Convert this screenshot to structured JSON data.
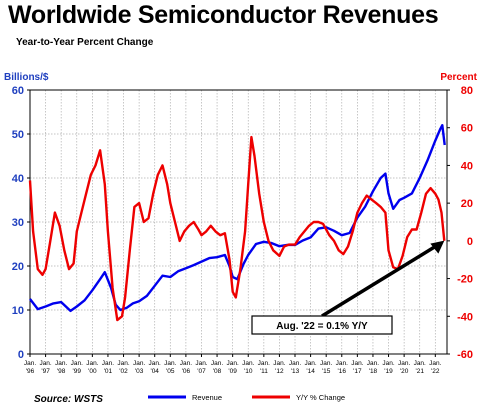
{
  "title": "Worldwide Semiconductor Revenues",
  "subtitle": "Year-to-Year Percent Change",
  "source": "Source: WSTS",
  "colors": {
    "revenue": "#0000ee",
    "change": "#ee0000",
    "axis_left": "#1f3fbf",
    "axis_right": "#ee0000",
    "grid": "#b0b0b0"
  },
  "chart_data": {
    "type": "line",
    "left_axis": {
      "label": "Billions/$",
      "ylim": [
        0,
        60
      ],
      "ticks": [
        0,
        10,
        20,
        30,
        40,
        50,
        60
      ]
    },
    "right_axis": {
      "label": "Percent",
      "ylim": [
        -60,
        80
      ],
      "ticks": [
        -60,
        -40,
        -20,
        0,
        20,
        40,
        60,
        80
      ]
    },
    "x_ticks": [
      {
        "year": "'96",
        "x": 1996
      },
      {
        "year": "'97",
        "x": 1997
      },
      {
        "year": "'98",
        "x": 1998
      },
      {
        "year": "'99",
        "x": 1999
      },
      {
        "year": "'00",
        "x": 2000
      },
      {
        "year": "'01",
        "x": 2001
      },
      {
        "year": "'02",
        "x": 2002
      },
      {
        "year": "'03",
        "x": 2003
      },
      {
        "year": "'04",
        "x": 2004
      },
      {
        "year": "'05",
        "x": 2005
      },
      {
        "year": "'06",
        "x": 2006
      },
      {
        "year": "'07",
        "x": 2007
      },
      {
        "year": "'08",
        "x": 2008
      },
      {
        "year": "'09",
        "x": 2009
      },
      {
        "year": "'10",
        "x": 2010
      },
      {
        "year": "'11",
        "x": 2011
      },
      {
        "year": "'12",
        "x": 2012
      },
      {
        "year": "'13",
        "x": 2013
      },
      {
        "year": "'14",
        "x": 2014
      },
      {
        "year": "'15",
        "x": 2015
      },
      {
        "year": "'16",
        "x": 2016
      },
      {
        "year": "'17",
        "x": 2017
      },
      {
        "year": "'18",
        "x": 2018
      },
      {
        "year": "'19",
        "x": 2019
      },
      {
        "year": "'20",
        "x": 2020
      },
      {
        "year": "'21",
        "x": 2021
      },
      {
        "year": "'22",
        "x": 2022
      }
    ],
    "x_tick_prefix": "Jan.",
    "xlim": [
      1996,
      2022.75
    ],
    "grid": true,
    "legend_position": "bottom-center",
    "series": [
      {
        "name": "Revenue",
        "axis": "left",
        "points": [
          [
            1996.0,
            12.5
          ],
          [
            1996.5,
            10.2
          ],
          [
            1997.0,
            10.8
          ],
          [
            1997.5,
            11.5
          ],
          [
            1998.0,
            11.8
          ],
          [
            1998.6,
            9.8
          ],
          [
            1999.0,
            10.8
          ],
          [
            1999.5,
            12.2
          ],
          [
            2000.0,
            14.5
          ],
          [
            2000.5,
            17.0
          ],
          [
            2000.8,
            18.6
          ],
          [
            2001.2,
            15.0
          ],
          [
            2001.5,
            11.2
          ],
          [
            2001.8,
            10.0
          ],
          [
            2002.2,
            10.5
          ],
          [
            2002.6,
            11.5
          ],
          [
            2003.0,
            12.0
          ],
          [
            2003.5,
            13.2
          ],
          [
            2004.0,
            15.5
          ],
          [
            2004.5,
            17.8
          ],
          [
            2005.0,
            17.5
          ],
          [
            2005.5,
            18.8
          ],
          [
            2006.0,
            19.5
          ],
          [
            2006.5,
            20.2
          ],
          [
            2007.0,
            21.0
          ],
          [
            2007.5,
            21.8
          ],
          [
            2008.0,
            22.0
          ],
          [
            2008.5,
            22.5
          ],
          [
            2008.8,
            20.0
          ],
          [
            2009.0,
            17.5
          ],
          [
            2009.3,
            17.0
          ],
          [
            2009.7,
            20.5
          ],
          [
            2010.0,
            22.5
          ],
          [
            2010.5,
            25.0
          ],
          [
            2011.0,
            25.5
          ],
          [
            2011.5,
            25.2
          ],
          [
            2012.0,
            24.5
          ],
          [
            2012.5,
            24.8
          ],
          [
            2013.0,
            24.8
          ],
          [
            2013.5,
            25.8
          ],
          [
            2014.0,
            26.5
          ],
          [
            2014.5,
            28.5
          ],
          [
            2015.0,
            28.8
          ],
          [
            2015.5,
            28.0
          ],
          [
            2016.0,
            27.0
          ],
          [
            2016.5,
            27.5
          ],
          [
            2017.0,
            31.0
          ],
          [
            2017.5,
            33.5
          ],
          [
            2018.0,
            37.0
          ],
          [
            2018.5,
            40.0
          ],
          [
            2018.8,
            41.0
          ],
          [
            2019.0,
            36.5
          ],
          [
            2019.3,
            33.0
          ],
          [
            2019.7,
            35.0
          ],
          [
            2020.0,
            35.5
          ],
          [
            2020.5,
            36.5
          ],
          [
            2021.0,
            40.0
          ],
          [
            2021.5,
            44.0
          ],
          [
            2022.0,
            48.5
          ],
          [
            2022.3,
            51.0
          ],
          [
            2022.45,
            52.0
          ],
          [
            2022.6,
            47.5
          ]
        ]
      },
      {
        "name": "Y/Y % Change",
        "axis": "right",
        "points": [
          [
            1996.0,
            32
          ],
          [
            1996.2,
            5
          ],
          [
            1996.5,
            -15
          ],
          [
            1996.8,
            -18
          ],
          [
            1997.0,
            -15
          ],
          [
            1997.3,
            0
          ],
          [
            1997.6,
            15
          ],
          [
            1997.9,
            8
          ],
          [
            1998.2,
            -5
          ],
          [
            1998.5,
            -15
          ],
          [
            1998.8,
            -12
          ],
          [
            1999.0,
            5
          ],
          [
            1999.3,
            15
          ],
          [
            1999.6,
            25
          ],
          [
            1999.9,
            35
          ],
          [
            2000.2,
            40
          ],
          [
            2000.5,
            48
          ],
          [
            2000.8,
            30
          ],
          [
            2001.0,
            5
          ],
          [
            2001.3,
            -25
          ],
          [
            2001.6,
            -42
          ],
          [
            2001.9,
            -40
          ],
          [
            2002.1,
            -30
          ],
          [
            2002.4,
            -5
          ],
          [
            2002.7,
            18
          ],
          [
            2003.0,
            20
          ],
          [
            2003.3,
            10
          ],
          [
            2003.6,
            12
          ],
          [
            2003.9,
            25
          ],
          [
            2004.2,
            35
          ],
          [
            2004.5,
            40
          ],
          [
            2004.8,
            30
          ],
          [
            2005.0,
            20
          ],
          [
            2005.3,
            10
          ],
          [
            2005.6,
            0
          ],
          [
            2005.9,
            5
          ],
          [
            2006.2,
            8
          ],
          [
            2006.5,
            10
          ],
          [
            2006.8,
            6
          ],
          [
            2007.0,
            3
          ],
          [
            2007.3,
            5
          ],
          [
            2007.6,
            8
          ],
          [
            2007.9,
            5
          ],
          [
            2008.2,
            3
          ],
          [
            2008.5,
            4
          ],
          [
            2008.8,
            -10
          ],
          [
            2009.0,
            -27
          ],
          [
            2009.2,
            -30
          ],
          [
            2009.5,
            -15
          ],
          [
            2009.8,
            5
          ],
          [
            2010.0,
            30
          ],
          [
            2010.2,
            55
          ],
          [
            2010.4,
            45
          ],
          [
            2010.7,
            25
          ],
          [
            2011.0,
            10
          ],
          [
            2011.3,
            0
          ],
          [
            2011.6,
            -5
          ],
          [
            2012.0,
            -8
          ],
          [
            2012.3,
            -3
          ],
          [
            2012.6,
            -2
          ],
          [
            2013.0,
            -2
          ],
          [
            2013.3,
            2
          ],
          [
            2013.6,
            5
          ],
          [
            2013.9,
            8
          ],
          [
            2014.2,
            10
          ],
          [
            2014.5,
            10
          ],
          [
            2014.8,
            9
          ],
          [
            2015.2,
            3
          ],
          [
            2015.5,
            0
          ],
          [
            2015.8,
            -5
          ],
          [
            2016.1,
            -7
          ],
          [
            2016.4,
            -3
          ],
          [
            2016.7,
            5
          ],
          [
            2017.0,
            15
          ],
          [
            2017.3,
            20
          ],
          [
            2017.6,
            24
          ],
          [
            2017.9,
            22
          ],
          [
            2018.2,
            20
          ],
          [
            2018.5,
            18
          ],
          [
            2018.8,
            15
          ],
          [
            2019.0,
            -5
          ],
          [
            2019.3,
            -14
          ],
          [
            2019.6,
            -15
          ],
          [
            2019.9,
            -8
          ],
          [
            2020.2,
            2
          ],
          [
            2020.5,
            6
          ],
          [
            2020.8,
            6
          ],
          [
            2021.1,
            15
          ],
          [
            2021.4,
            25
          ],
          [
            2021.7,
            28
          ],
          [
            2022.0,
            25
          ],
          [
            2022.2,
            22
          ],
          [
            2022.4,
            15
          ],
          [
            2022.58,
            0.1
          ]
        ]
      }
    ],
    "annotation": {
      "text": "Aug. '22 = 0.1% Y/Y",
      "x": 2022.58,
      "y_right": 0.1
    }
  }
}
